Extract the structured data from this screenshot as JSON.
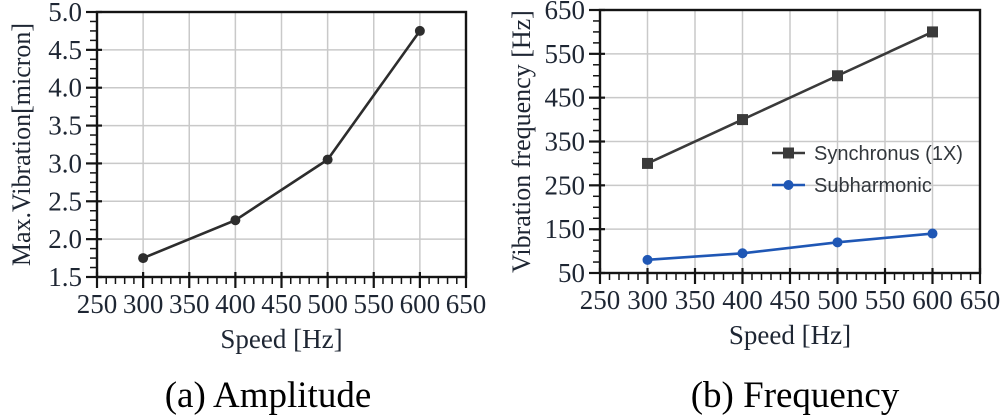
{
  "style": {
    "background": "#ffffff",
    "grid_color": "#c9c9c9",
    "axis_color": "#141414",
    "tick_label_color": "#1e2633",
    "axis_label_color": "#1e2633",
    "caption_color": "#000000",
    "legend_text_color": "#32373c"
  },
  "chart_data": [
    {
      "type": "line",
      "caption": "(a) Amplitude",
      "xlabel": "Speed [Hz]",
      "ylabel": "Max.Vibration[micron]",
      "xlim": [
        250,
        650
      ],
      "ylim": [
        1.5,
        5.0
      ],
      "xticks": [
        250,
        300,
        350,
        400,
        450,
        500,
        550,
        600,
        650
      ],
      "xtick_labels": [
        "250",
        "300",
        "350",
        "400",
        "450",
        "500",
        "550",
        "600",
        "650"
      ],
      "yticks": [
        1.5,
        2.0,
        2.5,
        3.0,
        3.5,
        4.0,
        4.5,
        5.0
      ],
      "ytick_labels": [
        "1.5",
        "2.0",
        "2.5",
        "3.0",
        "3.5",
        "4.0",
        "4.5",
        "5.0"
      ],
      "x_minor_step": 10,
      "y_minor_step": 0.125,
      "grid": true,
      "series": [
        {
          "name": "Max Vibration",
          "marker": "circle",
          "color": "#2d2d2d",
          "x": [
            300,
            400,
            500,
            600
          ],
          "values": [
            1.75,
            2.25,
            3.05,
            4.75
          ]
        }
      ]
    },
    {
      "type": "line",
      "caption": "(b) Frequency",
      "xlabel": "Speed [Hz]",
      "ylabel": "Vibration frequency [Hz]",
      "xlim": [
        250,
        650
      ],
      "ylim": [
        50,
        650
      ],
      "xticks": [
        250,
        300,
        350,
        400,
        450,
        500,
        550,
        600,
        650
      ],
      "xtick_labels": [
        "250",
        "300",
        "350",
        "400",
        "450",
        "500",
        "550",
        "600",
        "650"
      ],
      "yticks": [
        50,
        150,
        250,
        350,
        450,
        550,
        650
      ],
      "ytick_labels": [
        "50",
        "150",
        "250",
        "350",
        "450",
        "550",
        "650"
      ],
      "x_minor_step": 10,
      "y_minor_step": 25,
      "grid": true,
      "series": [
        {
          "name": "Synchronus (1X)",
          "marker": "square",
          "color": "#3a3a3a",
          "x": [
            300,
            400,
            500,
            600
          ],
          "values": [
            300,
            400,
            500,
            600
          ]
        },
        {
          "name": "Subharmonic",
          "marker": "circle",
          "color": "#1f57b5",
          "x": [
            300,
            400,
            500,
            600
          ],
          "values": [
            80,
            95,
            120,
            140
          ]
        }
      ],
      "legend": {
        "position": "middle-right",
        "entries": [
          "Synchronus (1X)",
          "Subharmonic"
        ]
      }
    }
  ]
}
